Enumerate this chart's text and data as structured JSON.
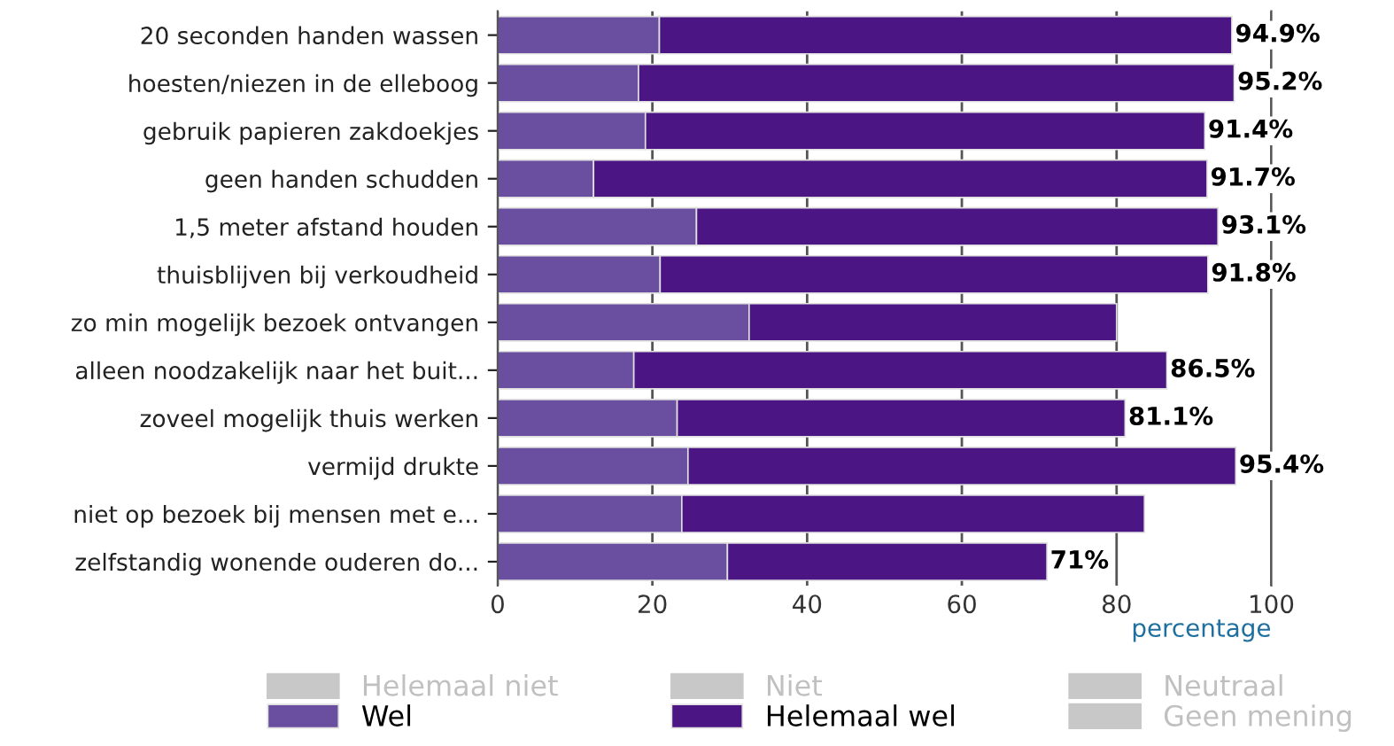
{
  "chart_data": {
    "type": "bar",
    "orientation": "horizontal",
    "stacked": true,
    "xlabel": "percentage",
    "categories": [
      "20 seconden handen wassen",
      "hoesten/niezen in de elleboog",
      "gebruik papieren zakdoekjes",
      "geen handen schudden",
      "1,5 meter afstand houden",
      "thuisblijven bij verkoudheid",
      "zo min mogelijk bezoek ontvangen",
      "alleen noodzakelijk naar het buit...",
      "zoveel mogelijk thuis werken",
      "vermijd drukte",
      "niet op bezoek bij mensen met e...",
      "zelfstandig wonende ouderen do..."
    ],
    "series": [
      {
        "name": "Helemaal niet",
        "color": "#c8c8c8",
        "values": [
          null,
          null,
          null,
          null,
          null,
          null,
          null,
          null,
          null,
          null,
          null,
          null
        ]
      },
      {
        "name": "Niet",
        "color": "#c8c8c8",
        "values": [
          null,
          null,
          null,
          null,
          null,
          null,
          null,
          null,
          null,
          null,
          null,
          null
        ]
      },
      {
        "name": "Neutraal",
        "color": "#c8c8c8",
        "values": [
          null,
          null,
          null,
          null,
          null,
          null,
          null,
          null,
          null,
          null,
          null,
          null
        ]
      },
      {
        "name": "Wel",
        "color": "#6a4fa0",
        "values": [
          20.9,
          18.2,
          19.1,
          12.4,
          25.7,
          21.0,
          32.5,
          17.6,
          23.2,
          24.6,
          23.8,
          29.7
        ]
      },
      {
        "name": "Helemaal wel",
        "color": "#4b1584",
        "values": [
          74.0,
          77.0,
          72.3,
          79.3,
          67.4,
          70.8,
          47.5,
          68.9,
          57.9,
          70.8,
          59.8,
          41.3
        ]
      },
      {
        "name": "Geen mening",
        "color": "#c8c8c8",
        "values": [
          null,
          null,
          null,
          null,
          null,
          null,
          null,
          null,
          null,
          null,
          null,
          null
        ]
      }
    ],
    "totals": [
      "94.9%",
      "95.2%",
      "91.4%",
      "91.7%",
      "93.1%",
      "91.8%",
      null,
      "86.5%",
      "81.1%",
      "95.4%",
      null,
      "71%"
    ],
    "xlim": [
      0,
      100
    ],
    "xticks": [
      0,
      20,
      40,
      60,
      80,
      100
    ],
    "grid": "x",
    "legend": "bottom"
  }
}
